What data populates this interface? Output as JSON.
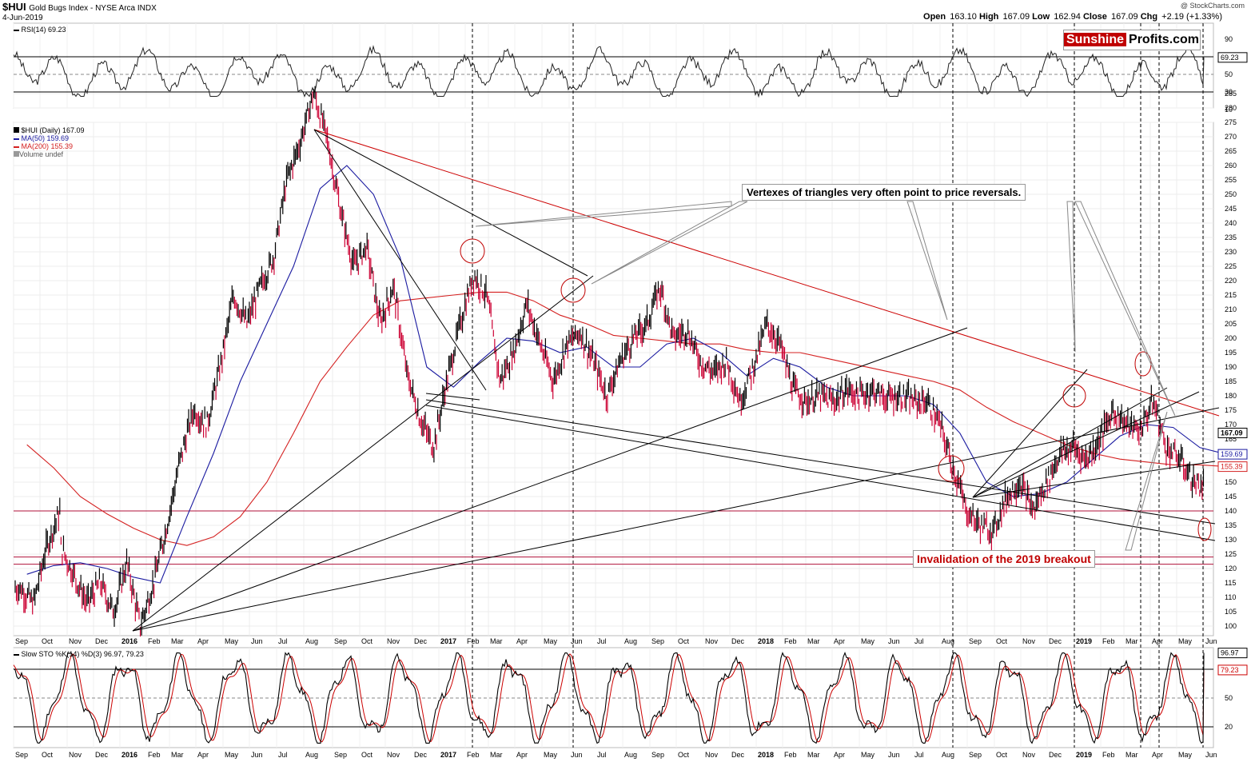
{
  "header": {
    "symbol": "$HUI",
    "name": "Gold Bugs Index - NYSE Arca INDX",
    "date": "4-Jun-2019",
    "credit": "@ StockCharts.com",
    "ohlc": {
      "open_label": "Open",
      "open": "163.10",
      "high_label": "High",
      "high": "167.09",
      "low_label": "Low",
      "low": "162.94",
      "close_label": "Close",
      "close": "167.09",
      "chg_label": "Chg",
      "chg": "+2.19 (+1.33%)"
    }
  },
  "logo": {
    "part1": "Sunshine",
    "part2": "Profits.com"
  },
  "rsi_panel": {
    "label": "RSI(14) 69.23",
    "value_tag": "69.23"
  },
  "price_panel": {
    "legend": [
      "$HUI (Daily) 167.09",
      "MA(50) 159.69",
      "MA(200) 155.39",
      "Volume undef"
    ],
    "tags": [
      "167.09",
      "159.69",
      "155.39"
    ]
  },
  "sto_panel": {
    "label": "Slow STO %K(14) %D(3) 96.97, 79.23",
    "tags": [
      "96.97",
      "79.23"
    ]
  },
  "annotations": {
    "vertexes": "Vertexes of triangles very often point to price reversals.",
    "invalidation": "Invalidation of the 2019 breakout"
  },
  "colors": {
    "price_up": "#000000",
    "price_down": "#cc0033",
    "ma50": "#1a1aa0",
    "ma200": "#d42020",
    "trend_red": "#cc0000",
    "accent_red": "#c00000"
  },
  "chart_data": {
    "type": "line",
    "title": "$HUI Gold Bugs Index - NYSE Arca INDX",
    "x_axis_labels": [
      "Sep",
      "Oct",
      "Nov",
      "Dec",
      "2016",
      "Feb",
      "Mar",
      "Apr",
      "May",
      "Jun",
      "Jul",
      "Aug",
      "Sep",
      "Oct",
      "Nov",
      "Dec",
      "2017",
      "Feb",
      "Mar",
      "Apr",
      "May",
      "Jun",
      "Jul",
      "Aug",
      "Sep",
      "Oct",
      "Nov",
      "Dec",
      "2018",
      "Feb",
      "Mar",
      "Apr",
      "May",
      "Jun",
      "Jul",
      "Aug",
      "Sep",
      "Oct",
      "Nov",
      "Dec",
      "2019",
      "Feb",
      "Mar",
      "Apr",
      "May",
      "Jun"
    ],
    "price_y_ticks": [
      100,
      105,
      110,
      115,
      120,
      125,
      130,
      135,
      140,
      145,
      150,
      155,
      160,
      165,
      170,
      175,
      180,
      185,
      190,
      195,
      200,
      205,
      210,
      215,
      220,
      225,
      230,
      235,
      240,
      245,
      250,
      255,
      260,
      265,
      270,
      275,
      280,
      285
    ],
    "price_ylim": [
      97,
      287
    ],
    "rsi_y_ticks": [
      10,
      30,
      50,
      70,
      90
    ],
    "sto_y_ticks": [
      20,
      50,
      80
    ],
    "series": [
      {
        "name": "$HUI (Daily)",
        "last": 167.09,
        "points": [
          [
            "Sep 2015",
            113
          ],
          [
            "Sep 2015",
            108
          ],
          [
            "Oct 2015",
            128
          ],
          [
            "Oct 2015",
            140
          ],
          [
            "Oct 2015",
            128
          ],
          [
            "Nov 2015",
            118
          ],
          [
            "Nov 2015",
            108
          ],
          [
            "Dec 2015",
            115
          ],
          [
            "Dec 2015",
            105
          ],
          [
            "Jan 2016",
            122
          ],
          [
            "Jan 2016",
            100
          ],
          [
            "Feb 2016",
            115
          ],
          [
            "Feb 2016",
            135
          ],
          [
            "Mar 2016",
            158
          ],
          [
            "Mar 2016",
            175
          ],
          [
            "Apr 2016",
            170
          ],
          [
            "Apr 2016",
            190
          ],
          [
            "May 2016",
            215
          ],
          [
            "May 2016",
            205
          ],
          [
            "Jun 2016",
            218
          ],
          [
            "Jun 2016",
            228
          ],
          [
            "Jul 2016",
            255
          ],
          [
            "Jul 2016",
            268
          ],
          [
            "Aug 2016",
            285
          ],
          [
            "Aug 2016",
            270
          ],
          [
            "Sep 2016",
            245
          ],
          [
            "Sep 2016",
            225
          ],
          [
            "Oct 2016",
            232
          ],
          [
            "Oct 2016",
            205
          ],
          [
            "Nov 2016",
            218
          ],
          [
            "Nov 2016",
            188
          ],
          [
            "Dec 2016",
            172
          ],
          [
            "Dec 2016",
            162
          ],
          [
            "Jan 2017",
            185
          ],
          [
            "Jan 2017",
            205
          ],
          [
            "Feb 2017",
            222
          ],
          [
            "Feb 2017",
            215
          ],
          [
            "Mar 2017",
            185
          ],
          [
            "Mar 2017",
            195
          ],
          [
            "Apr 2017",
            212
          ],
          [
            "Apr 2017",
            198
          ],
          [
            "May 2017",
            185
          ],
          [
            "May 2017",
            198
          ],
          [
            "Jun 2017",
            202
          ],
          [
            "Jun 2017",
            192
          ],
          [
            "Jul 2017",
            180
          ],
          [
            "Jul 2017",
            192
          ],
          [
            "Aug 2017",
            200
          ],
          [
            "Aug 2017",
            205
          ],
          [
            "Sep 2017",
            218
          ],
          [
            "Sep 2017",
            200
          ],
          [
            "Oct 2017",
            203
          ],
          [
            "Oct 2017",
            192
          ],
          [
            "Nov 2017",
            188
          ],
          [
            "Nov 2017",
            192
          ],
          [
            "Dec 2017",
            178
          ],
          [
            "Dec 2017",
            190
          ],
          [
            "Jan 2018",
            205
          ],
          [
            "Jan 2018",
            198
          ],
          [
            "Feb 2018",
            182
          ],
          [
            "Feb 2018",
            178
          ],
          [
            "Mar 2018",
            180
          ],
          [
            "Mar 2018",
            178
          ],
          [
            "Apr 2018",
            182
          ],
          [
            "Apr 2018",
            180
          ],
          [
            "May 2018",
            182
          ],
          [
            "May 2018",
            179
          ],
          [
            "Jun 2018",
            180
          ],
          [
            "Jun 2018",
            178
          ],
          [
            "Jul 2018",
            178
          ],
          [
            "Jul 2018",
            170
          ],
          [
            "Aug 2018",
            155
          ],
          [
            "Aug 2018",
            140
          ],
          [
            "Sep 2018",
            135
          ],
          [
            "Sep 2018",
            133
          ],
          [
            "Oct 2018",
            145
          ],
          [
            "Oct 2018",
            150
          ],
          [
            "Nov 2018",
            140
          ],
          [
            "Nov 2018",
            150
          ],
          [
            "Dec 2018",
            160
          ],
          [
            "Dec 2018",
            162
          ],
          [
            "Jan 2019",
            158
          ],
          [
            "Jan 2019",
            165
          ],
          [
            "Feb 2019",
            175
          ],
          [
            "Feb 2019",
            170
          ],
          [
            "Mar 2019",
            168
          ],
          [
            "Mar 2019",
            178
          ],
          [
            "Apr 2019",
            162
          ],
          [
            "Apr 2019",
            158
          ],
          [
            "May 2019",
            150
          ],
          [
            "May 2019",
            148
          ],
          [
            "Jun 2019",
            167
          ]
        ]
      },
      {
        "name": "MA(50)",
        "last": 159.69,
        "points": [
          [
            "Sep 2015",
            118
          ],
          [
            "Oct 2015",
            121
          ],
          [
            "Nov 2015",
            122
          ],
          [
            "Dec 2015",
            120
          ],
          [
            "Jan 2016",
            117
          ],
          [
            "Feb 2016",
            115
          ],
          [
            "Mar 2016",
            138
          ],
          [
            "Apr 2016",
            160
          ],
          [
            "May 2016",
            185
          ],
          [
            "Jun 2016",
            205
          ],
          [
            "Jul 2016",
            225
          ],
          [
            "Aug 2016",
            252
          ],
          [
            "Sep 2016",
            260
          ],
          [
            "Oct 2016",
            250
          ],
          [
            "Nov 2016",
            228
          ],
          [
            "Dec 2016",
            190
          ],
          [
            "Jan 2017",
            183
          ],
          [
            "Feb 2017",
            192
          ],
          [
            "Mar 2017",
            200
          ],
          [
            "Apr 2017",
            199
          ],
          [
            "May 2017",
            195
          ],
          [
            "Jun 2017",
            197
          ],
          [
            "Jul 2017",
            190
          ],
          [
            "Aug 2017",
            190
          ],
          [
            "Sep 2017",
            198
          ],
          [
            "Oct 2017",
            200
          ],
          [
            "Nov 2017",
            195
          ],
          [
            "Dec 2017",
            187
          ],
          [
            "Jan 2018",
            193
          ],
          [
            "Feb 2018",
            190
          ],
          [
            "Mar 2018",
            183
          ],
          [
            "Apr 2018",
            180
          ],
          [
            "May 2018",
            180
          ],
          [
            "Jun 2018",
            180
          ],
          [
            "Jul 2018",
            177
          ],
          [
            "Aug 2018",
            167
          ],
          [
            "Sep 2018",
            150
          ],
          [
            "Oct 2018",
            145
          ],
          [
            "Nov 2018",
            146
          ],
          [
            "Dec 2018",
            150
          ],
          [
            "Jan 2019",
            158
          ],
          [
            "Feb 2019",
            166
          ],
          [
            "Mar 2019",
            170
          ],
          [
            "Apr 2019",
            169
          ],
          [
            "May 2019",
            162
          ],
          [
            "Jun 2019",
            159.69
          ]
        ]
      },
      {
        "name": "MA(200)",
        "last": 155.39,
        "points": [
          [
            "Sep 2015",
            163
          ],
          [
            "Oct 2015",
            155
          ],
          [
            "Nov 2015",
            145
          ],
          [
            "Dec 2015",
            139
          ],
          [
            "Jan 2016",
            134
          ],
          [
            "Feb 2016",
            130
          ],
          [
            "Mar 2016",
            128
          ],
          [
            "Apr 2016",
            131
          ],
          [
            "May 2016",
            138
          ],
          [
            "Jun 2016",
            150
          ],
          [
            "Jul 2016",
            167
          ],
          [
            "Aug 2016",
            185
          ],
          [
            "Sep 2016",
            197
          ],
          [
            "Oct 2016",
            208
          ],
          [
            "Nov 2016",
            213
          ],
          [
            "Dec 2016",
            214
          ],
          [
            "Jan 2017",
            215
          ],
          [
            "Feb 2017",
            216
          ],
          [
            "Mar 2017",
            216
          ],
          [
            "Apr 2017",
            213
          ],
          [
            "May 2017",
            208
          ],
          [
            "Jun 2017",
            205
          ],
          [
            "Jul 2017",
            201
          ],
          [
            "Aug 2017",
            200
          ],
          [
            "Sep 2017",
            199
          ],
          [
            "Oct 2017",
            198
          ],
          [
            "Nov 2017",
            198
          ],
          [
            "Dec 2017",
            196
          ],
          [
            "Jan 2018",
            195
          ],
          [
            "Feb 2018",
            195
          ],
          [
            "Mar 2018",
            193
          ],
          [
            "Apr 2018",
            191
          ],
          [
            "May 2018",
            189
          ],
          [
            "Jun 2018",
            187
          ],
          [
            "Jul 2018",
            185
          ],
          [
            "Aug 2018",
            182
          ],
          [
            "Sep 2018",
            176
          ],
          [
            "Oct 2018",
            171
          ],
          [
            "Nov 2018",
            167
          ],
          [
            "Dec 2018",
            163
          ],
          [
            "Jan 2019",
            160
          ],
          [
            "Feb 2019",
            158
          ],
          [
            "Mar 2019",
            157
          ],
          [
            "Apr 2019",
            156
          ],
          [
            "May 2019",
            156
          ],
          [
            "Jun 2019",
            155.39
          ]
        ]
      }
    ],
    "horizontal_lines": [
      140,
      124,
      121.5
    ],
    "grid": true,
    "legend_position": "top-left"
  }
}
